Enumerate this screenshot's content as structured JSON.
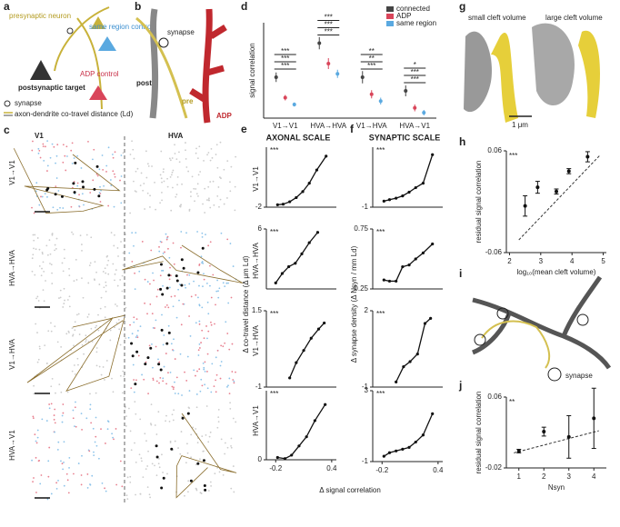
{
  "panels": {
    "letters": [
      "a",
      "b",
      "c",
      "d",
      "e",
      "f",
      "g",
      "h",
      "i",
      "j"
    ],
    "a": {
      "presynaptic": "presynaptic neuron",
      "postsynaptic": "postsynaptic target",
      "same_region": "same region control",
      "adp": "ADP control",
      "legend_synapse": "synapse",
      "legend_cotravel": "axon-dendrite co-travel distance (Ld)"
    },
    "b": {
      "synapse": "synapse",
      "post": "post",
      "pre": "pre",
      "adp": "ADP"
    },
    "c": {
      "v1": "V1",
      "hva": "HVA",
      "rows": [
        "V1→V1",
        "HVA→HVA",
        "V1→HVA",
        "HVA→V1"
      ]
    },
    "e": {
      "title": "AXONAL SCALE",
      "ylabel": "Δ co-travel distance (Δ μm Ld)",
      "rows": [
        "V1→V1",
        "HVA→HVA",
        "V1→HVA",
        "HVA→V1"
      ]
    },
    "f": {
      "title": "SYNAPTIC SCALE",
      "ylabel": "Δ synapse density (Δ Nsyn / mm Ld)"
    },
    "ef_xlabel": "Δ signal correlation",
    "g": {
      "small": "small cleft volume",
      "large": "large cleft volume",
      "scale": "1 μm"
    },
    "i": {
      "synapse": "synapse"
    }
  },
  "chart_data": [
    {
      "type": "dot",
      "ylabel": "signal correlation",
      "categories": [
        "V1→V1",
        "HVA→HVA",
        "V1→HVA",
        "HVA→V1"
      ],
      "ylim": [
        0,
        0.14
      ],
      "series": [
        {
          "name": "connected",
          "color": "#444444",
          "values": [
            0.06,
            0.11,
            0.06,
            0.04
          ],
          "errors": [
            0.007,
            0.009,
            0.009,
            0.008
          ]
        },
        {
          "name": "ADP",
          "color": "#d9455a",
          "values": [
            0.03,
            0.08,
            0.035,
            0.015
          ],
          "errors": [
            0.004,
            0.008,
            0.006,
            0.005
          ]
        },
        {
          "name": "same region",
          "color": "#5aa9e0",
          "values": [
            0.02,
            0.065,
            0.025,
            0.008
          ],
          "errors": [
            0.003,
            0.006,
            0.005,
            0.004
          ]
        }
      ],
      "stars": [
        [
          "***",
          "***",
          "***"
        ],
        [
          "***",
          "***",
          "***"
        ],
        [
          "***",
          "**",
          "**"
        ],
        [
          "***",
          "***",
          "*"
        ]
      ]
    },
    {
      "type": "line",
      "annotation": "***",
      "x": [
        -0.18,
        -0.12,
        -0.05,
        0.02,
        0.09,
        0.16,
        0.24,
        0.34
      ],
      "values": [
        -1.6,
        -1.5,
        -1.1,
        -0.4,
        0.6,
        2,
        4.2,
        6.5
      ],
      "xlim": [
        -0.3,
        0.45
      ],
      "ylim": [
        -2,
        8
      ],
      "yticks": [
        -2
      ]
    },
    {
      "type": "line",
      "annotation": "***",
      "x": [
        -0.2,
        -0.13,
        -0.06,
        0.01,
        0.08,
        0.16,
        0.25
      ],
      "values": [
        -0.3,
        0.8,
        1.6,
        2.0,
        3.1,
        4.4,
        5.6
      ],
      "xlim": [
        -0.3,
        0.45
      ],
      "ylim": [
        -1,
        6
      ],
      "yticks": [
        6
      ]
    },
    {
      "type": "line",
      "annotation": "***",
      "x": [
        -0.05,
        0.02,
        0.1,
        0.18,
        0.26,
        0.32
      ],
      "values": [
        -0.7,
        -0.2,
        0.2,
        0.6,
        0.9,
        1.1
      ],
      "xlim": [
        -0.3,
        0.45
      ],
      "ylim": [
        -1,
        1.5
      ],
      "yticks": [
        1.5,
        -1
      ]
    },
    {
      "type": "line",
      "annotation": "***",
      "x": [
        -0.18,
        -0.1,
        -0.03,
        0.05,
        0.13,
        0.22,
        0.33
      ],
      "values": [
        0.1,
        0.05,
        0.2,
        0.6,
        1.0,
        1.7,
        2.4
      ],
      "xlim": [
        -0.3,
        0.45
      ],
      "ylim": [
        0,
        3
      ],
      "yticks": [
        0
      ],
      "xticks": [
        -0.2,
        0.4
      ]
    },
    {
      "type": "line",
      "annotation": "***",
      "x": [
        -0.18,
        -0.12,
        -0.05,
        0.02,
        0.09,
        0.16,
        0.24,
        0.34
      ],
      "values": [
        -0.6,
        -0.5,
        -0.4,
        -0.25,
        0,
        0.3,
        0.6,
        2.5
      ],
      "xlim": [
        -0.3,
        0.45
      ],
      "ylim": [
        -1,
        3
      ],
      "yticks": [
        -1
      ]
    },
    {
      "type": "line",
      "annotation": "***",
      "x": [
        -0.18,
        -0.12,
        -0.05,
        0.02,
        0.09,
        0.16,
        0.24,
        0.34
      ],
      "values": [
        -0.1,
        -0.12,
        -0.12,
        0.12,
        0.15,
        0.25,
        0.35,
        0.5
      ],
      "xlim": [
        -0.3,
        0.45
      ],
      "ylim": [
        -0.25,
        0.75
      ],
      "yticks": [
        0.75,
        -0.25
      ]
    },
    {
      "type": "line",
      "annotation": "***",
      "x": [
        -0.05,
        0.03,
        0.1,
        0.18,
        0.26,
        0.32
      ],
      "values": [
        -0.8,
        -0.2,
        0,
        0.3,
        1.5,
        1.7
      ],
      "xlim": [
        -0.3,
        0.45
      ],
      "ylim": [
        -1,
        2
      ],
      "yticks": [
        2,
        -1
      ]
    },
    {
      "type": "line",
      "annotation": "***",
      "x": [
        -0.18,
        -0.12,
        -0.05,
        0.02,
        0.09,
        0.16,
        0.24,
        0.34
      ],
      "values": [
        -0.7,
        -0.5,
        -0.4,
        -0.3,
        -0.2,
        0.1,
        0.5,
        1.7
      ],
      "xlim": [
        -0.3,
        0.45
      ],
      "ylim": [
        -1,
        3
      ],
      "yticks": [
        3,
        -1
      ],
      "xticks": [
        -0.2,
        0.4
      ]
    },
    {
      "type": "scatter",
      "annotation": "***",
      "xlabel": "log₁₀(mean cleft volume)",
      "ylabel": "residual  signal correlation",
      "x": [
        2.5,
        2.9,
        3.5,
        3.9,
        4.5
      ],
      "values": [
        -0.005,
        0.017,
        0.012,
        0.036,
        0.053
      ],
      "errors": [
        0.012,
        0.007,
        0.003,
        0.003,
        0.006
      ],
      "fit": {
        "x": [
          2.3,
          4.9
        ],
        "y": [
          -0.045,
          0.055
        ]
      },
      "xlim": [
        1.9,
        5.1
      ],
      "ylim": [
        -0.06,
        0.06
      ],
      "xticks": [
        2,
        3,
        4,
        5
      ],
      "yticks": [
        0.06,
        -0.06
      ]
    },
    {
      "type": "scatter",
      "annotation": "**",
      "xlabel": "Nsyn",
      "ylabel": "residual  signal correlation",
      "x": [
        1,
        2,
        3,
        4
      ],
      "values": [
        -0.001,
        0.021,
        0.015,
        0.036
      ],
      "errors": [
        0.002,
        0.005,
        0.024,
        0.034
      ],
      "fit": {
        "x": [
          0.8,
          4.2
        ],
        "y": [
          -0.003,
          0.022
        ]
      },
      "xlim": [
        0.5,
        4.5
      ],
      "ylim": [
        -0.02,
        0.06
      ],
      "xticks": [
        1,
        2,
        3,
        4
      ],
      "yticks": [
        0.06,
        -0.02
      ]
    }
  ]
}
